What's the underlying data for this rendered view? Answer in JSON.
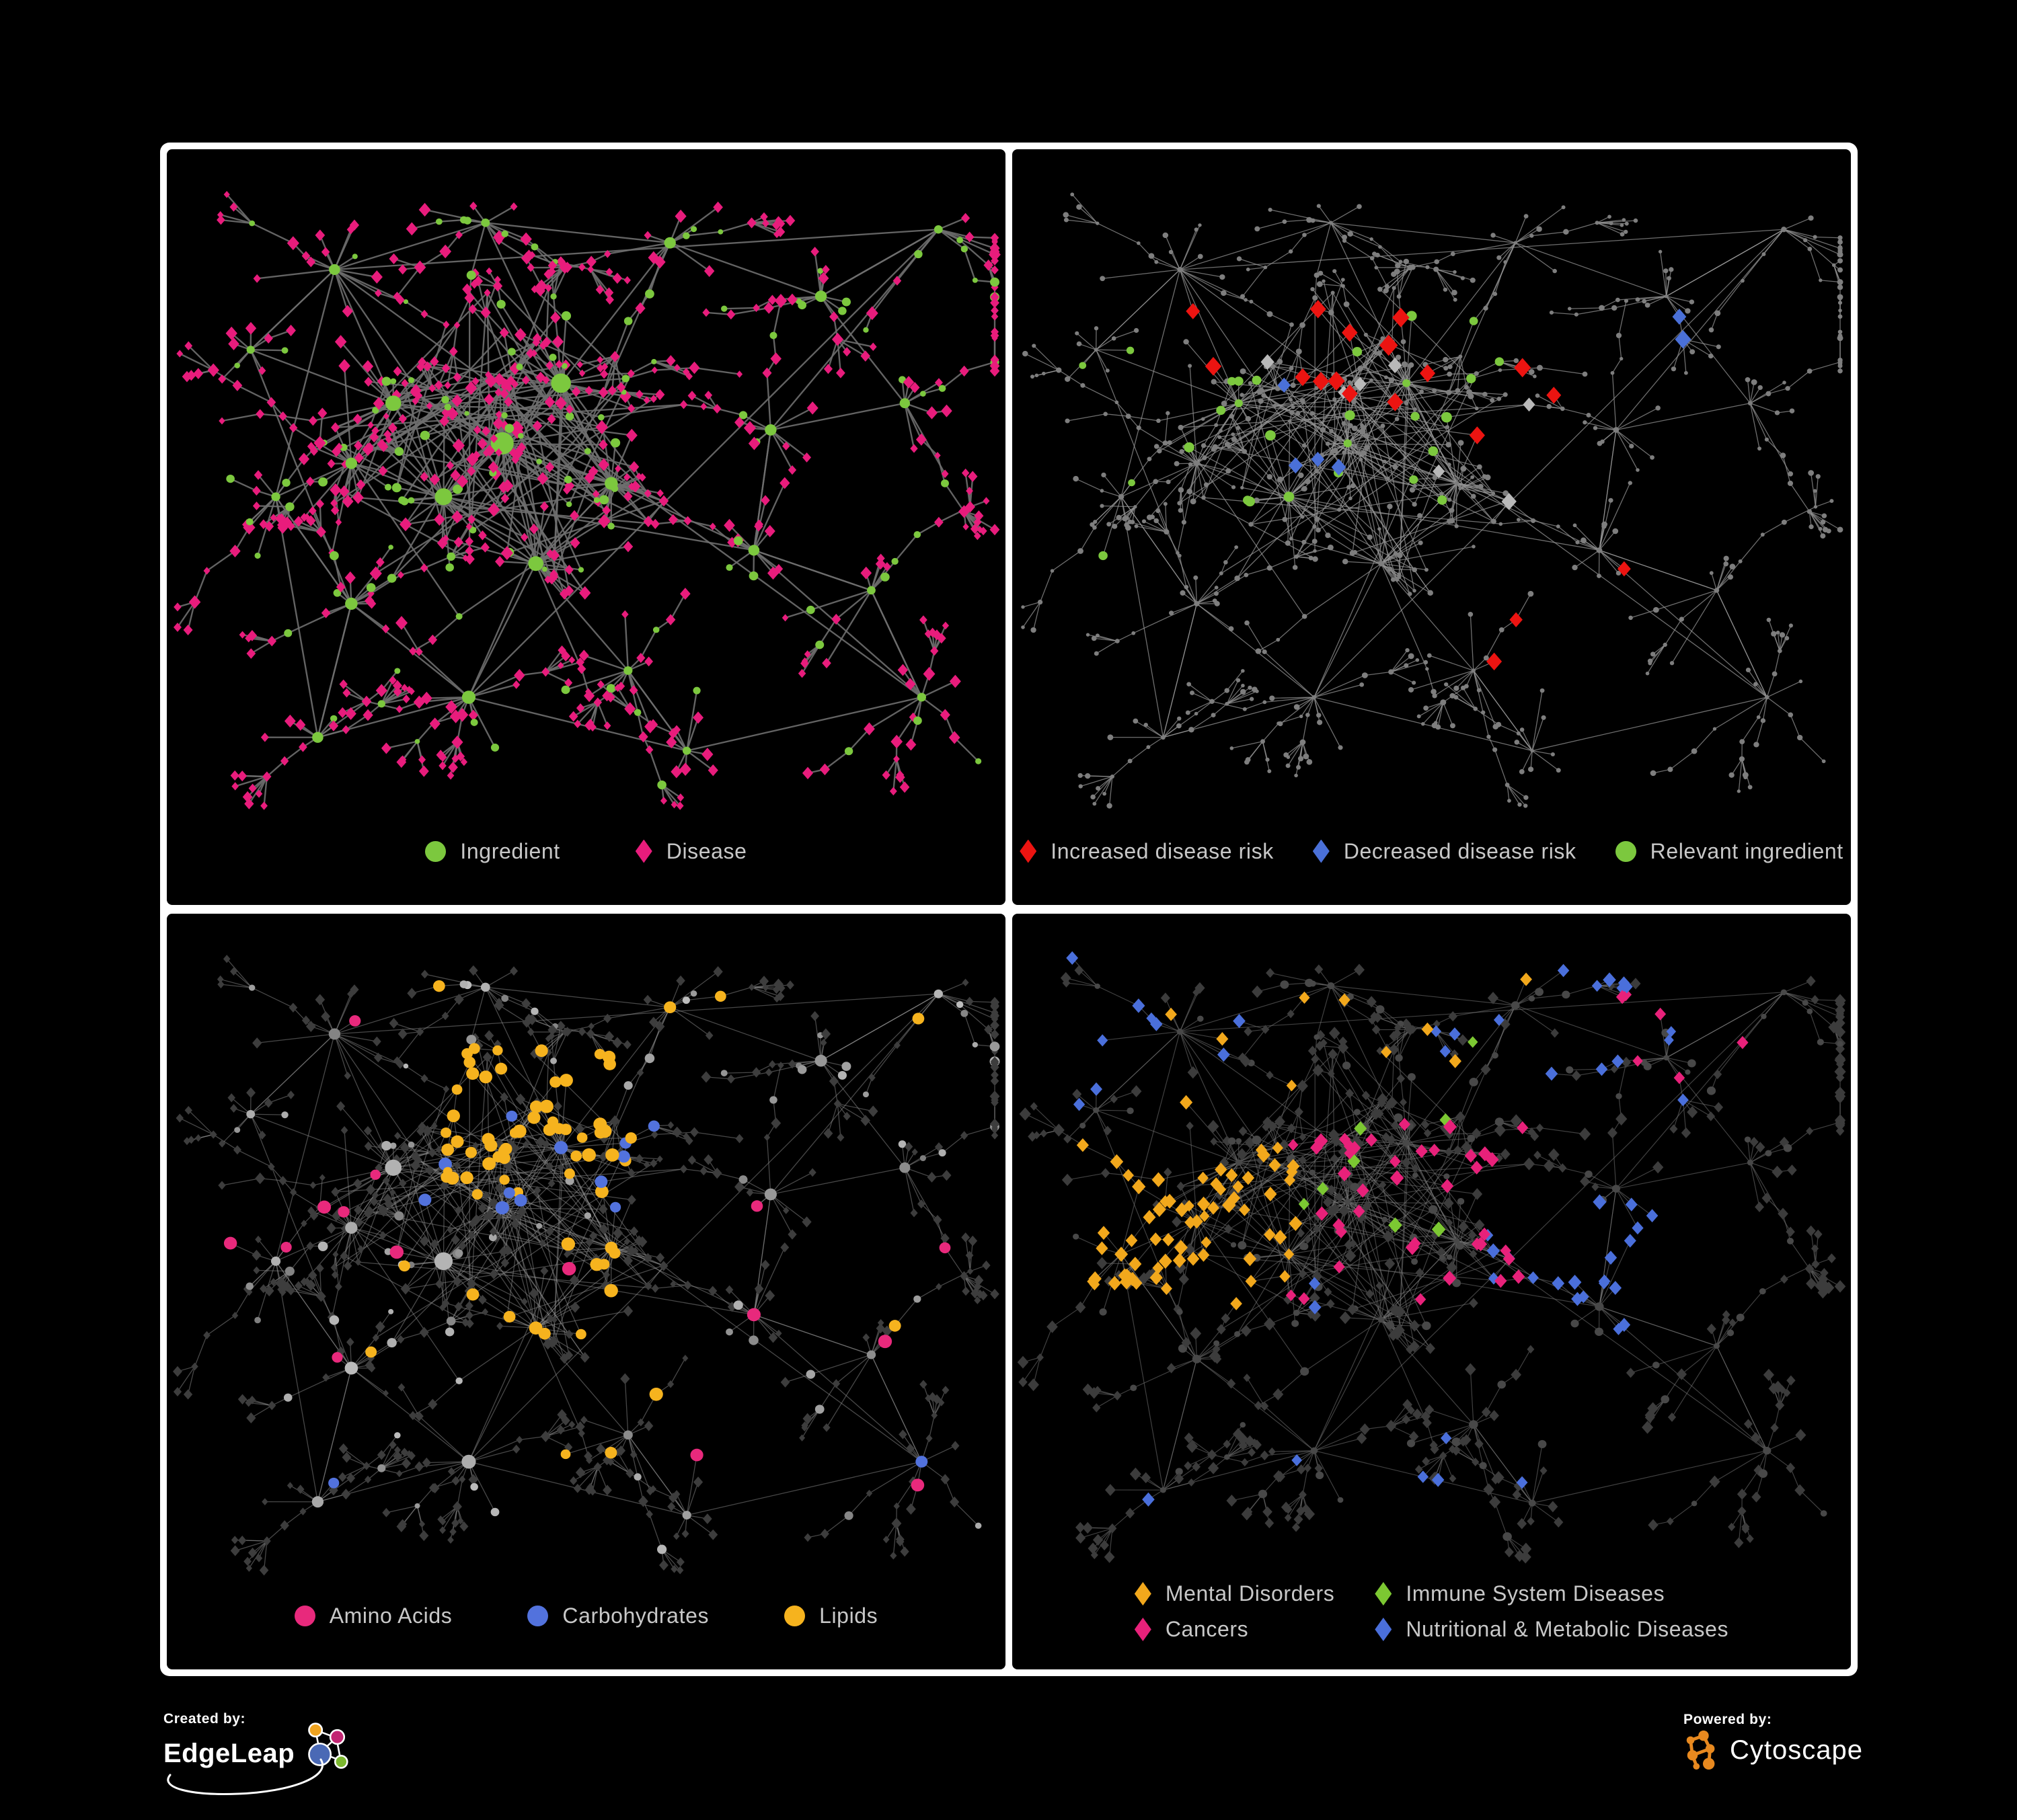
{
  "canvas": {
    "background": "#000000",
    "panel_border": "#ffffff"
  },
  "panels": [
    {
      "legend": [
        {
          "shape": "circle",
          "color": "#7cc83e",
          "label": "Ingredient"
        },
        {
          "shape": "diamond",
          "color": "#e81c7c",
          "label": "Disease"
        }
      ],
      "network": {
        "edge": {
          "stroke": "#6e6e6e",
          "width": 2.4,
          "opacity": 0.9
        },
        "circle": {
          "fill": "#7cc83e",
          "scale": 0.9
        },
        "diamond": {
          "fill": "#e81c7c",
          "scale": 1.15
        },
        "highlights": []
      }
    },
    {
      "legend": [
        {
          "shape": "diamond",
          "color": "#ec1411",
          "label": "Increased disease risk"
        },
        {
          "shape": "diamond",
          "color": "#4a70d8",
          "label": "Decreased disease risk"
        },
        {
          "shape": "circle",
          "color": "#7cc83e",
          "label": "Relevant ingredient"
        }
      ],
      "network": {
        "edge": {
          "stroke": "#999999",
          "width": 1.3,
          "opacity": 0.72
        },
        "circle": {
          "fill": "#7e7e7e",
          "size": 3.6
        },
        "diamond": {
          "fill": "#7e7e7e",
          "size": 3.6,
          "shape": "circle"
        },
        "highlights": [
          {
            "base": "diamond",
            "shape": "diamond",
            "color": "#ec1411",
            "size": 12,
            "count": 13,
            "region": [
              0.2,
              0.22,
              0.58,
              0.52
            ]
          },
          {
            "base": "diamond",
            "shape": "diamond",
            "color": "#ec1411",
            "size": 11,
            "count": 3,
            "region": [
              0.55,
              0.6,
              0.75,
              0.82
            ]
          },
          {
            "base": "diamond",
            "shape": "diamond",
            "color": "#ec1411",
            "size": 11,
            "count": 2,
            "region": [
              0.6,
              0.28,
              0.74,
              0.45
            ]
          },
          {
            "base": "diamond",
            "shape": "diamond",
            "color": "#4a70d8",
            "size": 11,
            "count": 2,
            "region": [
              0.72,
              0.2,
              0.9,
              0.3
            ]
          },
          {
            "base": "diamond",
            "shape": "diamond",
            "color": "#4a70d8",
            "size": 10,
            "count": 4,
            "region": [
              0.26,
              0.3,
              0.44,
              0.48
            ]
          },
          {
            "base": "diamond",
            "shape": "diamond",
            "color": "#b9b9b9",
            "size": 10,
            "count": 7,
            "region": [
              0.28,
              0.3,
              0.62,
              0.55
            ]
          },
          {
            "base": "circle",
            "shape": "circle",
            "color": "#7cc83e",
            "size": 7,
            "count": 24,
            "region": [
              0.18,
              0.24,
              0.62,
              0.55
            ]
          },
          {
            "base": "circle",
            "shape": "circle",
            "color": "#7cc83e",
            "size": 6,
            "count": 4,
            "region": [
              0.05,
              0.3,
              0.2,
              0.62
            ]
          }
        ]
      }
    },
    {
      "legend": [
        {
          "shape": "circle",
          "color": "#e8297c",
          "label": "Amino Acids"
        },
        {
          "shape": "circle",
          "color": "#5272dd",
          "label": "Carbohydrates"
        },
        {
          "shape": "circle",
          "color": "#f6b31e",
          "label": "Lipids"
        }
      ],
      "network": {
        "edge": {
          "stroke": "#8f8f8f",
          "width": 1.3,
          "opacity": 0.5
        },
        "circle": {
          "gray": [
            125,
            190
          ],
          "scale": 0.95
        },
        "diamond": {
          "fill": "#3d3d3d",
          "size": 6
        },
        "highlights": [
          {
            "base": "any",
            "shape": "circle",
            "color": "#f6b31e",
            "size": 9,
            "count": 52,
            "region": [
              0.32,
              0.2,
              0.56,
              0.42
            ]
          },
          {
            "base": "circle",
            "shape": "circle",
            "color": "#f6b31e",
            "size": 9,
            "count": 12,
            "region": [
              0.36,
              0.48,
              0.64,
              0.72
            ]
          },
          {
            "base": "circle",
            "shape": "circle",
            "color": "#f6b31e",
            "size": 8,
            "count": 10,
            "region": [
              0.05,
              0.05,
              0.95,
              0.95
            ]
          },
          {
            "base": "circle",
            "shape": "circle",
            "color": "#5272dd",
            "size": 9,
            "count": 10,
            "region": [
              0.3,
              0.22,
              0.56,
              0.45
            ]
          },
          {
            "base": "circle",
            "shape": "circle",
            "color": "#5272dd",
            "size": 8,
            "count": 4,
            "region": [
              0.05,
              0.1,
              0.95,
              0.9
            ]
          },
          {
            "base": "circle",
            "shape": "circle",
            "color": "#e8297c",
            "size": 9,
            "count": 8,
            "region": [
              0.05,
              0.15,
              0.5,
              0.95
            ]
          },
          {
            "base": "circle",
            "shape": "circle",
            "color": "#e8297c",
            "size": 9,
            "count": 7,
            "region": [
              0.4,
              0.4,
              0.95,
              0.9
            ]
          }
        ]
      }
    },
    {
      "legend": [
        {
          "shape": "diamond",
          "color": "#f2a81c",
          "label": "Mental Disorders"
        },
        {
          "shape": "diamond",
          "color": "#e8217a",
          "label": "Cancers"
        },
        {
          "shape": "diamond",
          "color": "#7cc832",
          "label": "Immune System Diseases"
        },
        {
          "shape": "diamond",
          "color": "#4a6fdb",
          "label": "Nutritional & Metabolic Diseases"
        }
      ],
      "network": {
        "edge": {
          "stroke": "#767676",
          "width": 1.2,
          "opacity": 0.55
        },
        "circle": {
          "fill": "#484848",
          "size": 5.5
        },
        "diamond": {
          "fill": "#3c3c3c",
          "size": 7
        },
        "highlights": [
          {
            "base": "any",
            "shape": "diamond",
            "color": "#f2a81c",
            "size": 9,
            "count": 68,
            "region": [
              0.08,
              0.35,
              0.34,
              0.6
            ]
          },
          {
            "base": "diamond",
            "shape": "diamond",
            "color": "#f2a81c",
            "size": 8.5,
            "count": 10,
            "region": [
              0.1,
              0.05,
              0.65,
              0.3
            ]
          },
          {
            "base": "diamond",
            "shape": "diamond",
            "color": "#e8217a",
            "size": 9,
            "count": 40,
            "region": [
              0.33,
              0.32,
              0.62,
              0.62
            ]
          },
          {
            "base": "diamond",
            "shape": "diamond",
            "color": "#e8217a",
            "size": 8.5,
            "count": 6,
            "region": [
              0.72,
              0.12,
              0.95,
              0.3
            ]
          },
          {
            "base": "diamond",
            "shape": "diamond",
            "color": "#4a6fdb",
            "size": 9,
            "count": 20,
            "region": [
              0.56,
              0.44,
              0.8,
              0.66
            ]
          },
          {
            "base": "diamond",
            "shape": "diamond",
            "color": "#4a6fdb",
            "size": 8.5,
            "count": 16,
            "region": [
              0.5,
              0.03,
              0.95,
              0.33
            ]
          },
          {
            "base": "diamond",
            "shape": "diamond",
            "color": "#4a6fdb",
            "size": 8.5,
            "count": 9,
            "region": [
              0.03,
              0.05,
              0.3,
              0.3
            ]
          },
          {
            "base": "diamond",
            "shape": "diamond",
            "color": "#4a6fdb",
            "size": 8.5,
            "count": 8,
            "region": [
              0.1,
              0.55,
              0.9,
              0.92
            ]
          },
          {
            "base": "diamond",
            "shape": "diamond",
            "color": "#7cc832",
            "size": 9,
            "count": 8,
            "region": [
              0.2,
              0.15,
              0.7,
              0.6
            ]
          }
        ]
      }
    }
  ],
  "footer": {
    "created_by": {
      "label": "Created by:",
      "brand": "EdgeLeap"
    },
    "powered_by": {
      "label": "Powered by:",
      "brand": "Cytoscape"
    }
  }
}
